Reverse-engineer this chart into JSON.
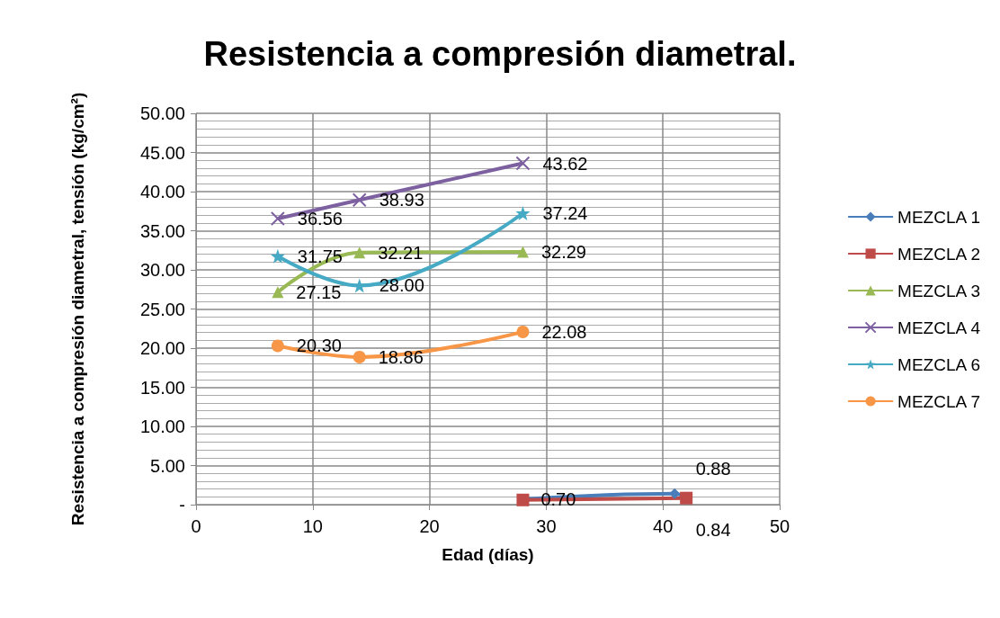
{
  "chart_data": {
    "type": "line",
    "title": "Resistencia a compresión diametral.",
    "xlabel": "Edad (días)",
    "ylabel": "Resistencia a compresión diametral, tensión (kg/cm²)",
    "xlim": [
      0,
      50
    ],
    "xticks": [
      0,
      10,
      20,
      30,
      40,
      50
    ],
    "ylim": [
      0,
      50
    ],
    "yticks": [
      {
        "value": 0,
        "label": "-"
      },
      {
        "value": 5,
        "label": "5.00"
      },
      {
        "value": 10,
        "label": "10.00"
      },
      {
        "value": 15,
        "label": "15.00"
      },
      {
        "value": 20,
        "label": "20.00"
      },
      {
        "value": 25,
        "label": "25.00"
      },
      {
        "value": 30,
        "label": "30.00"
      },
      {
        "value": 35,
        "label": "35.00"
      },
      {
        "value": 40,
        "label": "40.00"
      },
      {
        "value": 45,
        "label": "45.00"
      },
      {
        "value": 50,
        "label": "50.00"
      }
    ],
    "grid": true,
    "legend": "right",
    "series": [
      {
        "name": "MEZCLA 1",
        "color": "#4a7ebb",
        "marker": "diamond",
        "x": [
          28,
          41,
          42
        ],
        "values": [
          0.7,
          1.4,
          0.88
        ],
        "value_labels": [
          "0.70",
          null,
          "0.88"
        ]
      },
      {
        "name": "MEZCLA 2",
        "color": "#be4b48",
        "marker": "square",
        "x": [
          28,
          42
        ],
        "values": [
          0.6,
          0.84
        ],
        "value_labels": [
          null,
          "0.84"
        ]
      },
      {
        "name": "MEZCLA 3",
        "color": "#98b954",
        "marker": "triangle",
        "x": [
          7,
          14,
          28
        ],
        "values": [
          27.15,
          32.21,
          32.29
        ],
        "value_labels": [
          "27.15",
          "32.21",
          "32.29"
        ]
      },
      {
        "name": "MEZCLA 4",
        "color": "#7d60a0",
        "marker": "cross",
        "x": [
          7,
          14,
          28
        ],
        "values": [
          36.56,
          38.93,
          43.62
        ],
        "value_labels": [
          "36.56",
          "38.93",
          "43.62"
        ]
      },
      {
        "name": "MEZCLA 6",
        "color": "#46aac5",
        "marker": "star",
        "x": [
          7,
          14,
          28
        ],
        "values": [
          31.75,
          28.0,
          37.24
        ],
        "value_labels": [
          "31.75",
          "28.00",
          "37.24"
        ]
      },
      {
        "name": "MEZCLA 7",
        "color": "#f79646",
        "marker": "circle",
        "x": [
          7,
          14,
          28
        ],
        "values": [
          20.3,
          18.86,
          22.08
        ],
        "value_labels": [
          "20.30",
          "18.86",
          "22.08"
        ]
      }
    ]
  }
}
